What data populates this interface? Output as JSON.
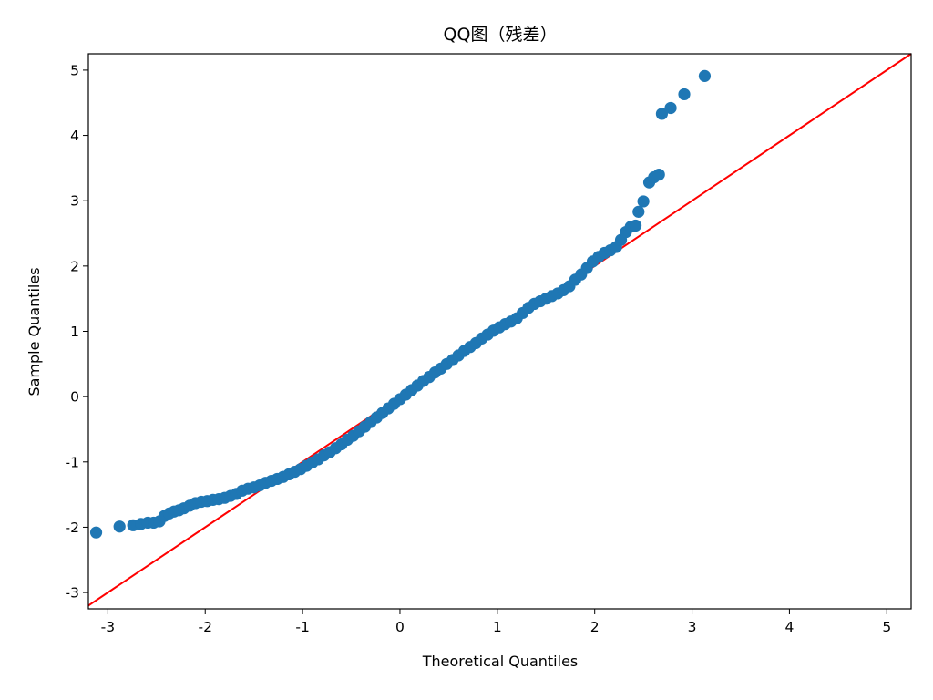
{
  "chart_data": {
    "type": "scatter",
    "title": "QQ图（残差）",
    "xlabel": "Theoretical Quantiles",
    "ylabel": "Sample Quantiles",
    "xlim": [
      -3.2,
      5.25
    ],
    "ylim": [
      -3.25,
      5.25
    ],
    "xticks": [
      -3,
      -2,
      -1,
      0,
      1,
      2,
      3,
      4,
      5
    ],
    "yticks": [
      -3,
      -2,
      -1,
      0,
      1,
      2,
      3,
      4,
      5
    ],
    "xtick_labels": [
      "-3",
      "-2",
      "-1",
      "0",
      "1",
      "2",
      "3",
      "4",
      "5"
    ],
    "ytick_labels": [
      "-3",
      "-2",
      "-1",
      "0",
      "1",
      "2",
      "3",
      "4",
      "5"
    ],
    "grid": false,
    "marker_color": "#1f77b4",
    "reference_line": {
      "color": "#ff0000",
      "x": [
        -3.2,
        5.25
      ],
      "y": [
        -3.2,
        5.25
      ]
    },
    "points": [
      {
        "x": -3.12,
        "y": -2.08
      },
      {
        "x": -2.88,
        "y": -1.99
      },
      {
        "x": -2.74,
        "y": -1.97
      },
      {
        "x": -2.66,
        "y": -1.95
      },
      {
        "x": -2.59,
        "y": -1.93
      },
      {
        "x": -2.53,
        "y": -1.93
      },
      {
        "x": -2.47,
        "y": -1.91
      },
      {
        "x": -2.42,
        "y": -1.83
      },
      {
        "x": -2.37,
        "y": -1.79
      },
      {
        "x": -2.32,
        "y": -1.76
      },
      {
        "x": -2.27,
        "y": -1.74
      },
      {
        "x": -2.22,
        "y": -1.71
      },
      {
        "x": -2.16,
        "y": -1.67
      },
      {
        "x": -2.1,
        "y": -1.63
      },
      {
        "x": -2.04,
        "y": -1.61
      },
      {
        "x": -1.98,
        "y": -1.6
      },
      {
        "x": -1.92,
        "y": -1.58
      },
      {
        "x": -1.86,
        "y": -1.57
      },
      {
        "x": -1.8,
        "y": -1.55
      },
      {
        "x": -1.74,
        "y": -1.52
      },
      {
        "x": -1.68,
        "y": -1.49
      },
      {
        "x": -1.62,
        "y": -1.44
      },
      {
        "x": -1.56,
        "y": -1.41
      },
      {
        "x": -1.5,
        "y": -1.39
      },
      {
        "x": -1.44,
        "y": -1.36
      },
      {
        "x": -1.38,
        "y": -1.32
      },
      {
        "x": -1.32,
        "y": -1.29
      },
      {
        "x": -1.26,
        "y": -1.26
      },
      {
        "x": -1.2,
        "y": -1.23
      },
      {
        "x": -1.14,
        "y": -1.19
      },
      {
        "x": -1.08,
        "y": -1.15
      },
      {
        "x": -1.02,
        "y": -1.11
      },
      {
        "x": -0.96,
        "y": -1.06
      },
      {
        "x": -0.9,
        "y": -1.01
      },
      {
        "x": -0.84,
        "y": -0.96
      },
      {
        "x": -0.78,
        "y": -0.9
      },
      {
        "x": -0.72,
        "y": -0.85
      },
      {
        "x": -0.66,
        "y": -0.79
      },
      {
        "x": -0.6,
        "y": -0.73
      },
      {
        "x": -0.54,
        "y": -0.66
      },
      {
        "x": -0.48,
        "y": -0.6
      },
      {
        "x": -0.42,
        "y": -0.53
      },
      {
        "x": -0.36,
        "y": -0.46
      },
      {
        "x": -0.3,
        "y": -0.39
      },
      {
        "x": -0.24,
        "y": -0.32
      },
      {
        "x": -0.18,
        "y": -0.25
      },
      {
        "x": -0.12,
        "y": -0.18
      },
      {
        "x": -0.06,
        "y": -0.11
      },
      {
        "x": 0.0,
        "y": -0.04
      },
      {
        "x": 0.06,
        "y": 0.03
      },
      {
        "x": 0.12,
        "y": 0.1
      },
      {
        "x": 0.18,
        "y": 0.17
      },
      {
        "x": 0.24,
        "y": 0.24
      },
      {
        "x": 0.3,
        "y": 0.3
      },
      {
        "x": 0.36,
        "y": 0.37
      },
      {
        "x": 0.42,
        "y": 0.43
      },
      {
        "x": 0.48,
        "y": 0.5
      },
      {
        "x": 0.54,
        "y": 0.56
      },
      {
        "x": 0.6,
        "y": 0.63
      },
      {
        "x": 0.66,
        "y": 0.7
      },
      {
        "x": 0.72,
        "y": 0.76
      },
      {
        "x": 0.78,
        "y": 0.82
      },
      {
        "x": 0.84,
        "y": 0.89
      },
      {
        "x": 0.9,
        "y": 0.95
      },
      {
        "x": 0.96,
        "y": 1.01
      },
      {
        "x": 1.02,
        "y": 1.06
      },
      {
        "x": 1.08,
        "y": 1.11
      },
      {
        "x": 1.14,
        "y": 1.15
      },
      {
        "x": 1.2,
        "y": 1.2
      },
      {
        "x": 1.26,
        "y": 1.28
      },
      {
        "x": 1.32,
        "y": 1.36
      },
      {
        "x": 1.38,
        "y": 1.42
      },
      {
        "x": 1.44,
        "y": 1.46
      },
      {
        "x": 1.5,
        "y": 1.5
      },
      {
        "x": 1.56,
        "y": 1.54
      },
      {
        "x": 1.62,
        "y": 1.58
      },
      {
        "x": 1.68,
        "y": 1.63
      },
      {
        "x": 1.74,
        "y": 1.69
      },
      {
        "x": 1.8,
        "y": 1.79
      },
      {
        "x": 1.86,
        "y": 1.87
      },
      {
        "x": 1.92,
        "y": 1.97
      },
      {
        "x": 1.98,
        "y": 2.07
      },
      {
        "x": 2.04,
        "y": 2.14
      },
      {
        "x": 2.1,
        "y": 2.2
      },
      {
        "x": 2.16,
        "y": 2.24
      },
      {
        "x": 2.22,
        "y": 2.29
      },
      {
        "x": 2.27,
        "y": 2.4
      },
      {
        "x": 2.32,
        "y": 2.52
      },
      {
        "x": 2.37,
        "y": 2.6
      },
      {
        "x": 2.42,
        "y": 2.62
      },
      {
        "x": 2.45,
        "y": 2.83
      },
      {
        "x": 2.5,
        "y": 2.99
      },
      {
        "x": 2.56,
        "y": 3.28
      },
      {
        "x": 2.61,
        "y": 3.36
      },
      {
        "x": 2.66,
        "y": 3.4
      },
      {
        "x": 2.69,
        "y": 4.33
      },
      {
        "x": 2.78,
        "y": 4.42
      },
      {
        "x": 2.92,
        "y": 4.63
      },
      {
        "x": 3.13,
        "y": 4.91
      }
    ]
  }
}
